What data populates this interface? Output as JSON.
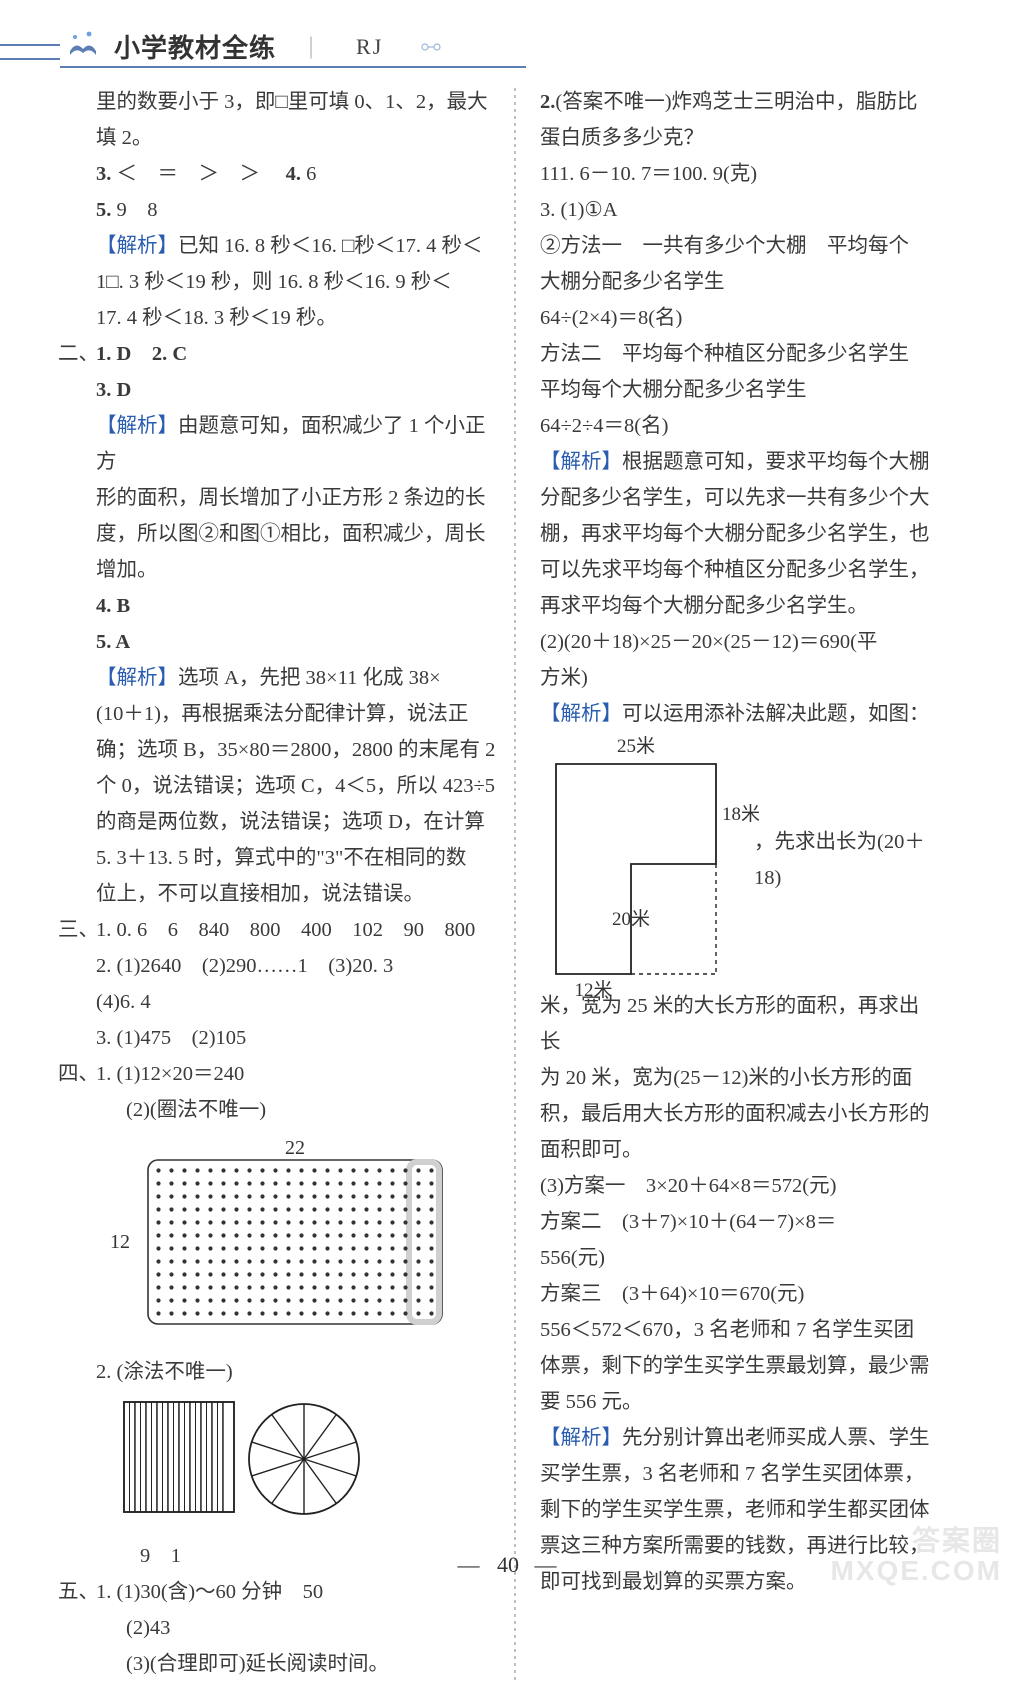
{
  "header": {
    "title": "小学教材全练",
    "tag": "RJ",
    "underline_color": "#5b7fb5"
  },
  "left": {
    "l1": "里的数要小于 3，即□里可填 0、1、2，最大",
    "l2": "填 2。",
    "l3a": "3.",
    "l3b": "＜　＝　＞　＞",
    "l3c": "4.",
    "l3d": "6",
    "l4a": "5.",
    "l4b": "9　8",
    "ana1_h": "【解析】",
    "ana1_a": "已知 16. 8 秒＜16. □秒＜17. 4 秒＜",
    "ana1_b": "1□. 3 秒＜19 秒，则 16. 8 秒＜16. 9 秒＜",
    "ana1_c": "17. 4 秒＜18. 3 秒＜19 秒。",
    "sec2": "二、",
    "s2_1": "1. D",
    "s2_2": "2. C",
    "s2_3": "3. D",
    "ana2_h": "【解析】",
    "ana2_a": "由题意可知，面积减少了 1 个小正方",
    "ana2_b": "形的面积，周长增加了小正方形 2 条边的长",
    "ana2_c": "度，所以图②和图①相比，面积减少，周长",
    "ana2_d": "增加。",
    "s2_4": "4. B",
    "s2_5": "5. A",
    "ana3_a": "选项 A，先把 38×11 化成 38×",
    "ana3_b": "(10＋1)，再根据乘法分配律计算，说法正",
    "ana3_c": "确；选项 B，35×80＝2800，2800 的末尾有 2",
    "ana3_d": "个 0，说法错误；选项 C，4＜5，所以 423÷5",
    "ana3_e": "的商是两位数，说法错误；选项 D，在计算",
    "ana3_f": "5. 3＋13. 5 时，算式中的\"3\"不在相同的数",
    "ana3_g": "位上，不可以直接相加，说法错误。",
    "sec3": "三、",
    "s3_1": "1. 0. 6　6　840　800　400　102　90　800",
    "s3_2": "2. (1)2640　(2)290……1　(3)20. 3",
    "s3_2b": "(4)6. 4",
    "s3_3": "3. (1)475　(2)105",
    "sec4": "四、",
    "s4_1": "1. (1)12×20＝240",
    "s4_1b": "(2)(圈法不唯一)",
    "dot_top": "22",
    "dot_left": "12",
    "s4_2": "2. (涂法不唯一)",
    "s4_2n": "9　1",
    "sec5": "五、",
    "s5_1": "1. (1)30(含)～60 分钟　50",
    "s5_2": "(2)43",
    "s5_3": "(3)(合理即可)延长阅读时间。"
  },
  "right": {
    "r1a": "2.",
    "r1b": "(答案不唯一)炸鸡芝士三明治中，脂肪比",
    "r2": "蛋白质多多少克？",
    "r3": "111. 6－10. 7＝100. 9(克)",
    "r4": "3. (1)①A",
    "r5": "②方法一　一共有多少个大棚　平均每个",
    "r6": "大棚分配多少名学生",
    "r7": "64÷(2×4)＝8(名)",
    "r8": "方法二　平均每个种植区分配多少名学生",
    "r9": "平均每个大棚分配多少名学生",
    "r10": "64÷2÷4＝8(名)",
    "ana_h": "【解析】",
    "ana_a": "根据题意可知，要求平均每个大棚",
    "ana_b": "分配多少名学生，可以先求一共有多少个大",
    "ana_c": "棚，再求平均每个大棚分配多少名学生，也",
    "ana_d": "可以先求平均每个种植区分配多少名学生，",
    "ana_e": "再求平均每个大棚分配多少名学生。",
    "r11": "(2)(20＋18)×25－20×(25－12)＝690(平",
    "r12": "方米)",
    "ana2_h": "【解析】",
    "ana2_a": "可以运用添补法解决此题，如图：",
    "ls_top": "25米",
    "ls_right": "18米",
    "ls_mid": "20米",
    "ls_bot": "12米",
    "ls_tail": "，先求出长为(20＋18)",
    "r13": "米，宽为 25 米的大长方形的面积，再求出长",
    "r14": "为 20 米，宽为(25－12)米的小长方形的面",
    "r15": "积，最后用大长方形的面积减去小长方形的",
    "r16": "面积即可。",
    "r17": "(3)方案一　3×20＋64×8＝572(元)",
    "r18": "方案二　(3＋7)×10＋(64－7)×8＝",
    "r19": "556(元)",
    "r20": "方案三　(3＋64)×10＝670(元)",
    "r21": "556＜572＜670，3 名老师和 7 名学生买团",
    "r22": "体票，剩下的学生买学生票最划算，最少需",
    "r23": "要 556 元。",
    "ana3_h": "【解析】",
    "ana3_a": "先分别计算出老师买成人票、学生",
    "ana3_b": "买学生票，3 名老师和 7 名学生买团体票，",
    "ana3_c": "剩下的学生买学生票，老师和学生都买团体",
    "ana3_d": "票这三种方案所需要的钱数，再进行比较，",
    "ana3_e": "即可找到最划算的买票方案。"
  },
  "footer": {
    "page": "40"
  },
  "watermark": {
    "l1": "答案圈",
    "l2": "MXQE.COM"
  },
  "styles": {
    "blue": "#2a5db0",
    "text": "#3a3a3a",
    "font_size": 20.5,
    "line_height": 36
  },
  "dot_rect": {
    "rows": 12,
    "cols": 22,
    "cell": 13,
    "radius": 2.1,
    "stroke": "#333333",
    "fill": "#333333",
    "highlight_cols": 2,
    "highlight_stroke": "#d0d0d0"
  },
  "stripes": {
    "square_size": 110,
    "bars": 10,
    "circle_r": 55,
    "slices": 10,
    "fill_index": 9,
    "stroke": "#222222"
  },
  "lshape": {
    "outer_w": 160,
    "outer_h": 210,
    "cut_w": 85,
    "cut_h": 110,
    "stroke": "#222222",
    "dash": "4 4"
  }
}
